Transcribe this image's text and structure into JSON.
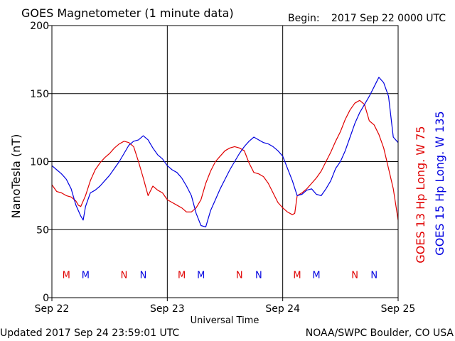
{
  "header": {
    "title": "GOES Magnetometer (1 minute data)",
    "begin_label": "Begin:",
    "begin_value": "2017 Sep 22 0000 UTC"
  },
  "footer": {
    "updated": "Updated 2017 Sep 24 23:59:01 UTC",
    "credit": "NOAA/SWPC Boulder, CO USA"
  },
  "colors": {
    "goes13": "#e00000",
    "goes15": "#0000e0",
    "axis": "#000000",
    "background": "#ffffff"
  },
  "chart_data": {
    "type": "line",
    "title": "GOES Magnetometer (1 minute data)",
    "xlabel": "Universal Time",
    "ylabel": "NanoTesla (nT)",
    "x_unit": "hours since 2017 Sep 22 0000 UTC",
    "xlim": [
      0,
      72
    ],
    "ylim": [
      0,
      200
    ],
    "y_ticks": [
      0,
      50,
      100,
      150,
      200
    ],
    "x_ticks": [
      {
        "x": 0,
        "label": "Sep 22"
      },
      {
        "x": 24,
        "label": "Sep 23"
      },
      {
        "x": 48,
        "label": "Sep 24"
      },
      {
        "x": 72,
        "label": "Sep 25"
      }
    ],
    "grid": true,
    "legend": [
      {
        "name": "GOES 13 Hp  Long. W 75",
        "color": "#e00000"
      },
      {
        "name": "GOES 15 Hp  Long. W 135",
        "color": "#0000e0"
      }
    ],
    "series": [
      {
        "name": "GOES 13 Hp  Long. W 75",
        "color": "#e00000",
        "x": [
          0,
          1,
          2,
          3,
          4,
          5,
          5.5,
          6,
          7,
          8,
          9,
          10,
          11,
          12,
          13,
          14,
          15,
          16,
          17,
          18,
          19,
          20,
          21,
          22,
          23,
          24,
          25,
          26,
          27,
          28,
          29,
          30,
          31,
          32,
          33,
          34,
          35,
          36,
          37,
          38,
          39,
          40,
          41,
          42,
          43,
          44,
          45,
          46,
          47,
          48,
          49,
          50,
          50.5,
          51,
          52,
          53,
          54,
          55,
          56,
          57,
          58,
          59,
          60,
          61,
          62,
          63,
          64,
          65,
          66,
          67,
          68,
          69,
          70,
          71,
          72
        ],
        "y": [
          83,
          78,
          77,
          75,
          74,
          71,
          68,
          67,
          75,
          86,
          94,
          99,
          103,
          106,
          110,
          113,
          115,
          114,
          111,
          100,
          88,
          75,
          82,
          79,
          77,
          72,
          70,
          68,
          66,
          63,
          63,
          66,
          72,
          84,
          93,
          100,
          104,
          108,
          110,
          111,
          110,
          108,
          99,
          92,
          91,
          89,
          84,
          77,
          70,
          66,
          63,
          61,
          62,
          75,
          77,
          80,
          84,
          88,
          93,
          100,
          107,
          115,
          122,
          131,
          138,
          143,
          145,
          142,
          130,
          127,
          120,
          110,
          95,
          80,
          57
        ]
      },
      {
        "name": "GOES 15 Hp  Long. W 135",
        "color": "#0000e0",
        "x": [
          0,
          1,
          2,
          3,
          4,
          5,
          6,
          6.5,
          7,
          8,
          9,
          10,
          11,
          12,
          13,
          14,
          15,
          16,
          17,
          18,
          19,
          20,
          21,
          22,
          23,
          24,
          25,
          26,
          27,
          28,
          29,
          30,
          31,
          32,
          33,
          34,
          35,
          36,
          37,
          38,
          39,
          40,
          41,
          42,
          43,
          44,
          45,
          46,
          47,
          48,
          49,
          50,
          51,
          52,
          53,
          54,
          55,
          56,
          57,
          58,
          59,
          60,
          61,
          62,
          63,
          64,
          65,
          66,
          67,
          68,
          69,
          70,
          71,
          72
        ],
        "y": [
          97,
          94,
          91,
          87,
          80,
          68,
          60,
          57,
          67,
          77,
          79,
          82,
          86,
          90,
          95,
          100,
          106,
          112,
          115,
          116,
          119,
          116,
          110,
          105,
          102,
          97,
          94,
          92,
          88,
          82,
          75,
          62,
          53,
          52,
          64,
          72,
          80,
          87,
          94,
          100,
          106,
          111,
          115,
          118,
          116,
          114,
          113,
          111,
          108,
          104,
          95,
          86,
          75,
          76,
          79,
          80,
          76,
          75,
          80,
          86,
          95,
          100,
          108,
          118,
          128,
          136,
          142,
          148,
          155,
          162,
          158,
          148,
          118,
          114
        ]
      }
    ],
    "annotations": [
      {
        "x": 3,
        "text": "M",
        "color": "#e00000"
      },
      {
        "x": 7,
        "text": "M",
        "color": "#0000e0"
      },
      {
        "x": 15,
        "text": "N",
        "color": "#e00000"
      },
      {
        "x": 19,
        "text": "N",
        "color": "#0000e0"
      },
      {
        "x": 27,
        "text": "M",
        "color": "#e00000"
      },
      {
        "x": 31,
        "text": "M",
        "color": "#0000e0"
      },
      {
        "x": 39,
        "text": "N",
        "color": "#e00000"
      },
      {
        "x": 43,
        "text": "N",
        "color": "#0000e0"
      },
      {
        "x": 51,
        "text": "M",
        "color": "#e00000"
      },
      {
        "x": 55,
        "text": "M",
        "color": "#0000e0"
      },
      {
        "x": 63,
        "text": "N",
        "color": "#e00000"
      },
      {
        "x": 67,
        "text": "N",
        "color": "#0000e0"
      }
    ],
    "annotation_y": 17
  }
}
